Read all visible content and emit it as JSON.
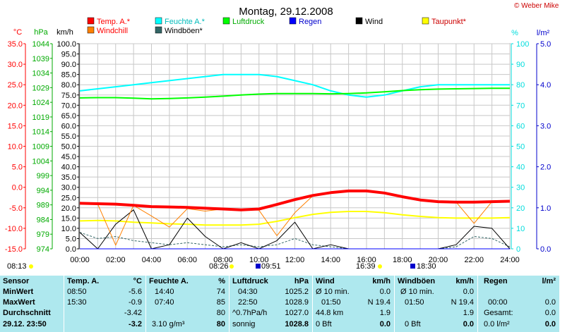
{
  "header": {
    "title": "Montag, 29.12.2008",
    "credit": "© Weber Mike"
  },
  "chart_data": {
    "type": "line",
    "title": "Montag, 29.12.2008",
    "x": [
      "00:00",
      "01:00",
      "02:00",
      "03:00",
      "04:00",
      "05:00",
      "06:00",
      "07:00",
      "08:00",
      "09:00",
      "10:00",
      "11:00",
      "12:00",
      "13:00",
      "14:00",
      "15:00",
      "16:00",
      "17:00",
      "18:00",
      "19:00",
      "20:00",
      "21:00",
      "22:00",
      "23:00",
      "24:00"
    ],
    "xticks": [
      "00:00",
      "02:00",
      "04:00",
      "06:00",
      "08:00",
      "10:00",
      "12:00",
      "14:00",
      "16:00",
      "18:00",
      "20:00",
      "22:00",
      "24:00"
    ],
    "axes": {
      "temp_c": {
        "label": "°C",
        "ticks": [
          "35.0",
          "30.0",
          "25.0",
          "20.0",
          "15.0",
          "10.0",
          "5.0",
          "0.0",
          "-5.0",
          "-10.0",
          "-15.0"
        ],
        "ylim": [
          -15,
          35
        ],
        "color": "#ff0000"
      },
      "pressure_hpa": {
        "label": "hPa",
        "ticks": [
          "1044",
          "1039",
          "1034",
          "1029",
          "1024",
          "1019",
          "1014",
          "1009",
          "1004",
          "999",
          "994",
          "989",
          "984",
          "979",
          "974"
        ],
        "ylim": [
          974,
          1044
        ],
        "color": "#00cc00"
      },
      "wind_kmh": {
        "label": "km/h",
        "ticks": [
          "100.0",
          "95.0",
          "90.0",
          "85.0",
          "80.0",
          "75.0",
          "70.0",
          "65.0",
          "60.0",
          "55.0",
          "50.0",
          "45.0",
          "40.0",
          "35.0",
          "30.0",
          "25.0",
          "20.0",
          "15.0",
          "10.0",
          "5.0",
          "0.0"
        ],
        "ylim": [
          0,
          100
        ],
        "color": "#000000"
      },
      "humidity_pct": {
        "label": "%",
        "ticks": [
          "100",
          "90",
          "80",
          "70",
          "60",
          "50",
          "40",
          "30",
          "20",
          "10",
          "0"
        ],
        "ylim": [
          0,
          100
        ],
        "color": "#00ffff"
      },
      "rain_lm2": {
        "label": "l/m²",
        "ticks": [
          "5.0",
          "4.0",
          "3.0",
          "2.0",
          "1.0",
          "0.0"
        ],
        "ylim": [
          0,
          5
        ],
        "color": "#0000cc"
      }
    },
    "legend": [
      {
        "name": "Temp. A.*",
        "color": "#ff0000"
      },
      {
        "name": "Feuchte A.*",
        "color": "#00ffff"
      },
      {
        "name": "Luftdruck",
        "color": "#00ff00"
      },
      {
        "name": "Regen",
        "color": "#0000ff"
      },
      {
        "name": "Wind",
        "color": "#000000"
      },
      {
        "name": "Taupunkt*",
        "color": "#ffff00"
      },
      {
        "name": "Windchill",
        "color": "#ff8000"
      },
      {
        "name": "Windböen*",
        "color": "#336666"
      }
    ],
    "series": [
      {
        "name": "Temp. A.*",
        "axis": "temp_c",
        "color": "#ff0000",
        "width": 4,
        "values": [
          -3.9,
          -4.0,
          -4.1,
          -4.4,
          -4.7,
          -4.8,
          -4.9,
          -5.1,
          -5.3,
          -5.5,
          -5.3,
          -4.2,
          -3.0,
          -2.0,
          -1.3,
          -0.9,
          -0.9,
          -1.4,
          -2.3,
          -3.1,
          -3.5,
          -3.6,
          -3.6,
          -3.5,
          -3.4
        ]
      },
      {
        "name": "Feuchte A.*",
        "axis": "humidity_pct",
        "color": "#00ffff",
        "width": 2,
        "values": [
          77,
          78,
          79,
          80,
          81,
          82,
          83,
          84,
          85,
          85,
          85,
          84,
          82,
          80,
          77,
          75,
          74,
          75,
          77,
          79,
          80,
          80,
          80,
          80,
          80
        ]
      },
      {
        "name": "Luftdruck",
        "axis": "pressure_hpa",
        "color": "#00ff00",
        "width": 2,
        "values": [
          1025.5,
          1025.6,
          1025.6,
          1025.4,
          1025.2,
          1025.3,
          1025.5,
          1025.8,
          1026.1,
          1026.5,
          1026.8,
          1027.0,
          1027.0,
          1027.0,
          1026.9,
          1027.0,
          1027.2,
          1027.6,
          1028.0,
          1028.3,
          1028.5,
          1028.6,
          1028.7,
          1028.8,
          1028.8
        ]
      },
      {
        "name": "Taupunkt*",
        "axis": "temp_c",
        "color": "#ffff00",
        "width": 2,
        "values": [
          -8.2,
          -8.1,
          -8.2,
          -8.5,
          -8.7,
          -8.9,
          -9.0,
          -9.2,
          -9.2,
          -9.2,
          -9.0,
          -8.3,
          -7.4,
          -6.6,
          -6.1,
          -5.9,
          -5.9,
          -6.2,
          -6.7,
          -7.1,
          -7.4,
          -7.5,
          -7.5,
          -7.5,
          -7.4
        ]
      },
      {
        "name": "Windchill",
        "axis": "temp_c",
        "color": "#ff8000",
        "width": 1,
        "values": [
          -3.9,
          -4.1,
          -14.1,
          -4.4,
          -7.0,
          -9.7,
          -5.2,
          -5.8,
          -5.3,
          -5.4,
          -5.6,
          -11.8,
          -6.2,
          -2.1,
          -1.4,
          -0.9,
          -0.9,
          -1.4,
          -2.3,
          -3.1,
          -3.5,
          -3.6,
          -8.8,
          -3.5,
          -3.4
        ]
      },
      {
        "name": "Wind",
        "axis": "wind_kmh",
        "color": "#000000",
        "width": 1,
        "values": [
          8,
          0,
          12,
          19,
          0,
          2,
          15,
          6,
          0,
          3,
          0,
          4,
          13,
          0,
          2,
          0,
          0,
          0,
          0,
          0,
          0,
          2,
          11,
          10,
          0
        ]
      },
      {
        "name": "Windböen*",
        "axis": "wind_kmh",
        "color": "#336666",
        "width": 1,
        "values": [
          8,
          5,
          6,
          4,
          3,
          2,
          3,
          2,
          1,
          2,
          1,
          2,
          5,
          2,
          1,
          0,
          0,
          0,
          0,
          0,
          0,
          1,
          6,
          5,
          1
        ]
      },
      {
        "name": "Regen",
        "axis": "rain_lm2",
        "color": "#0000ff",
        "width": 1,
        "values": [
          0,
          0,
          0,
          0,
          0,
          0,
          0,
          0,
          0,
          0,
          0,
          0,
          0,
          0,
          0,
          0,
          0,
          0,
          0,
          0,
          0,
          0,
          0,
          0,
          0
        ]
      }
    ],
    "sun_moon": {
      "sunrise": "08:13",
      "moon_1": "08:26",
      "moon_2": "09:51",
      "moon_3": "16:39",
      "sunset": "18:30"
    }
  },
  "stats": {
    "row_labels": [
      "Sensor",
      "MinWert",
      "MaxWert",
      "Durchschnitt",
      "29.12. 23:50"
    ],
    "temp": {
      "header": "Temp. A.",
      "unit": "°C",
      "min_time": "08:50",
      "min": "-5.6",
      "max_time": "15:30",
      "max": "-0.9",
      "avg": "-3.42",
      "current": "-3.2"
    },
    "humidity": {
      "header": "Feuchte A.",
      "unit": "%",
      "min_time": "14:40",
      "min": "74",
      "max_time": "07:40",
      "max": "85",
      "avg": "80",
      "current_extra": "3.10 g/m³",
      "current": "80"
    },
    "pressure": {
      "header": "Luftdruck",
      "unit": "hPa",
      "min_time": "04:30",
      "min": "1025.2",
      "max_time": "22:50",
      "max": "1028.9",
      "trend": "^0.7hPa/h",
      "avg": "1027.0",
      "forecast": "sonnig",
      "current": "1028.8"
    },
    "wind": {
      "header": "Wind",
      "unit": "km/h",
      "avg_label": "Ø 10 min.",
      "avg_val": "0.0",
      "max_time": "01:50",
      "max": "N 19.4",
      "distance": "44.8 km",
      "distance_val": "1.9",
      "current_bft": "0 Bft",
      "current": "0.0"
    },
    "gusts": {
      "header": "Windböen",
      "unit": "km/h",
      "avg_label": "Ø 10 min.",
      "avg_val": "0.0",
      "max_time": "01:50",
      "max": "N 19.4",
      "extra_val": "1.9",
      "current_bft": "0 Bft",
      "current": "0.0"
    },
    "rain": {
      "header": "Regen",
      "unit": "l/m²",
      "max_time": "00:00",
      "max": "0.0",
      "total_label": "Gesamt:",
      "total": "0.0",
      "current_rate": "0.0 l/m²",
      "current": "0.0"
    }
  }
}
